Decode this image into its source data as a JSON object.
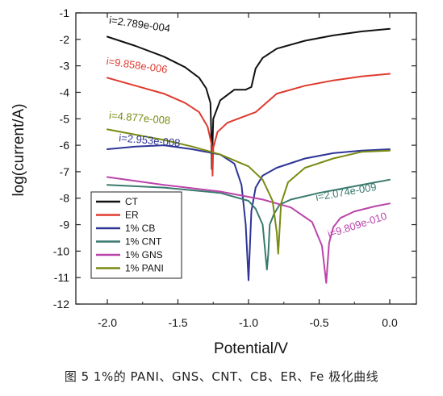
{
  "caption": "图 5 1%的 PANI、GNS、CNT、CB、ER、Fe 极化曲线",
  "chart_data": {
    "type": "line",
    "xlabel": "Potential/V",
    "ylabel": "log(current/A)",
    "xlim": [
      -2.0,
      0.0
    ],
    "ylim": [
      -12,
      -1
    ],
    "xticks": [
      "-2.0",
      "-1.5",
      "-1.0",
      "-0.5",
      "0.0"
    ],
    "yticks": [
      "-1",
      "-2",
      "-3",
      "-4",
      "-5",
      "-6",
      "-7",
      "-8",
      "-9",
      "-10",
      "-11",
      "-12"
    ],
    "grid": false,
    "legend_position": "bottom-left",
    "series": [
      {
        "name": "CT",
        "color": "#111111",
        "x": [
          -2.0,
          -1.8,
          -1.6,
          -1.45,
          -1.35,
          -1.3,
          -1.27,
          -1.265,
          -1.26,
          -1.25,
          -1.2,
          -1.1,
          -1.02,
          -0.98,
          -0.95,
          -0.9,
          -0.8,
          -0.6,
          -0.4,
          -0.2,
          0.0
        ],
        "y": [
          -1.9,
          -2.25,
          -2.65,
          -3.05,
          -3.45,
          -3.85,
          -4.4,
          -5.3,
          -6.9,
          -5.0,
          -4.3,
          -3.9,
          -3.9,
          -3.8,
          -3.1,
          -2.7,
          -2.35,
          -2.05,
          -1.85,
          -1.7,
          -1.6
        ]
      },
      {
        "name": "ER",
        "color": "#e03a2e",
        "x": [
          -2.0,
          -1.8,
          -1.6,
          -1.45,
          -1.35,
          -1.29,
          -1.26,
          -1.255,
          -1.25,
          -1.22,
          -1.15,
          -1.05,
          -0.95,
          -0.8,
          -0.6,
          -0.4,
          -0.2,
          0.0
        ],
        "y": [
          -3.45,
          -3.75,
          -4.05,
          -4.4,
          -4.75,
          -5.3,
          -6.0,
          -7.15,
          -6.1,
          -5.5,
          -5.15,
          -4.95,
          -4.75,
          -4.05,
          -3.75,
          -3.55,
          -3.4,
          -3.3
        ]
      },
      {
        "name": "1% CB",
        "color": "#2e3596",
        "x": [
          -2.0,
          -1.8,
          -1.6,
          -1.4,
          -1.2,
          -1.1,
          -1.05,
          -1.02,
          -1.0,
          -0.98,
          -0.95,
          -0.9,
          -0.8,
          -0.6,
          -0.4,
          -0.2,
          0.0
        ],
        "y": [
          -6.15,
          -6.05,
          -6.0,
          -6.15,
          -6.35,
          -6.7,
          -7.5,
          -9.0,
          -11.1,
          -8.5,
          -7.6,
          -7.15,
          -6.85,
          -6.5,
          -6.3,
          -6.2,
          -6.15
        ]
      },
      {
        "name": "1% CNT",
        "color": "#3a7a6e",
        "x": [
          -2.0,
          -1.6,
          -1.2,
          -1.0,
          -0.95,
          -0.9,
          -0.87,
          -0.86,
          -0.85,
          -0.82,
          -0.78,
          -0.7,
          -0.5,
          -0.3,
          -0.1,
          0.0
        ],
        "y": [
          -7.5,
          -7.6,
          -7.8,
          -8.1,
          -8.4,
          -9.0,
          -10.7,
          -10.1,
          -9.0,
          -8.6,
          -8.25,
          -8.05,
          -7.8,
          -7.6,
          -7.4,
          -7.3
        ]
      },
      {
        "name": "1% GNS",
        "color": "#bb44aa",
        "x": [
          -2.0,
          -1.6,
          -1.2,
          -0.9,
          -0.7,
          -0.55,
          -0.48,
          -0.45,
          -0.43,
          -0.4,
          -0.35,
          -0.25,
          -0.1,
          0.0
        ],
        "y": [
          -7.2,
          -7.5,
          -7.75,
          -8.05,
          -8.35,
          -8.9,
          -9.8,
          -11.2,
          -9.7,
          -9.1,
          -8.75,
          -8.5,
          -8.3,
          -8.2
        ]
      },
      {
        "name": "1% PANI",
        "color": "#7a8a12",
        "x": [
          -2.0,
          -1.8,
          -1.6,
          -1.4,
          -1.2,
          -1.0,
          -0.9,
          -0.83,
          -0.8,
          -0.79,
          -0.77,
          -0.72,
          -0.6,
          -0.4,
          -0.2,
          0.0
        ],
        "y": [
          -5.4,
          -5.6,
          -5.8,
          -6.05,
          -6.35,
          -6.8,
          -7.3,
          -8.1,
          -9.3,
          -10.1,
          -8.2,
          -7.4,
          -6.85,
          -6.5,
          -6.25,
          -6.2
        ]
      }
    ],
    "annotations": [
      {
        "text": "i=2.789e-004",
        "color": "#111111",
        "x": -1.99,
        "y": -1.4,
        "rotate": 8
      },
      {
        "text": "i=9.858e-006",
        "color": "#e03a2e",
        "x": -2.01,
        "y": -2.95,
        "rotate": 8
      },
      {
        "text": "i=4.877e-008",
        "color": "#7a8a12",
        "x": -1.99,
        "y": -5.0,
        "rotate": 5
      },
      {
        "text": "i=2.953e-008",
        "color": "#2e3596",
        "x": -1.92,
        "y": -5.85,
        "rotate": 5
      },
      {
        "text": "i=2.074e-009",
        "color": "#3a7a6e",
        "x": -0.52,
        "y": -8.1,
        "rotate": -10
      },
      {
        "text": "i=9.809e-010",
        "color": "#bb44aa",
        "x": -0.43,
        "y": -9.5,
        "rotate": -18
      }
    ]
  }
}
